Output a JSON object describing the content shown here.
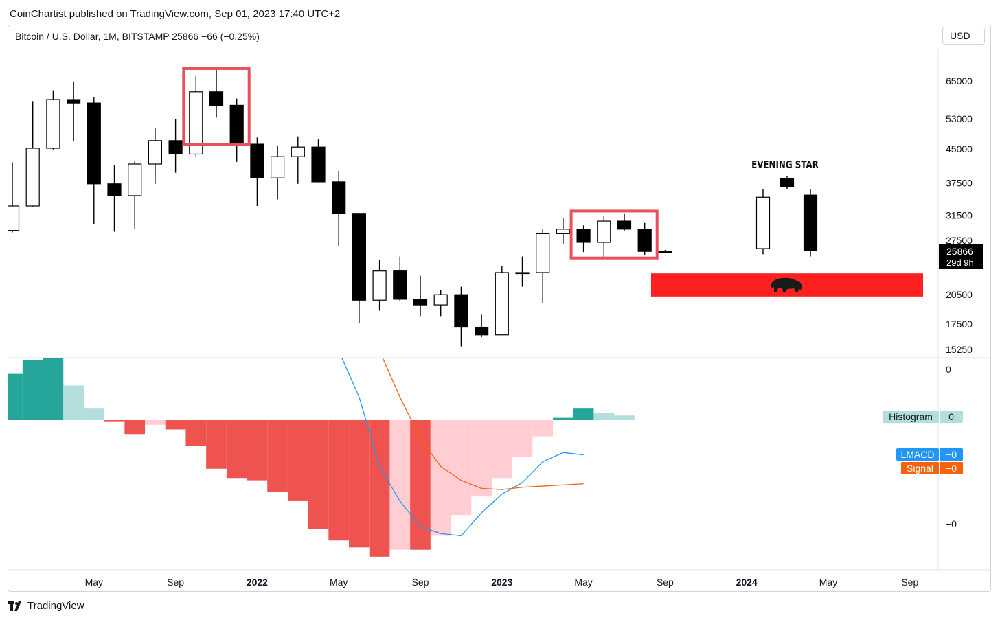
{
  "header": {
    "publisher_line": "CoinChartist published on TradingView.com, Sep 01, 2023 17:40 UTC+2",
    "symbol_line": "Bitcoin / U.S. Dollar, 1M, BITSTAMP  25866  −66 (−0.25%)",
    "currency": "USD"
  },
  "footer": {
    "brand": "TradingView"
  },
  "colors": {
    "bull_body": "#ffffff",
    "bear_body": "#000000",
    "highlight_box": "#e8505b",
    "bear_zone": "#fd2020",
    "macd_line": "#2196f3",
    "signal_line": "#f7630c",
    "hist_dark_green": "#26a69a",
    "hist_light_green": "#b2dfdb",
    "hist_dark_red": "#ef5350",
    "hist_light_red": "#ffcdd2"
  },
  "chart_data": {
    "type": "candlestick",
    "timeframe": "1M",
    "price_axis": {
      "scale": "log",
      "ticks": [
        65000,
        53000,
        45000,
        37500,
        31500,
        27500,
        23500,
        20500,
        17500,
        15250
      ],
      "tick_labels": [
        "65000",
        "53000",
        "45000",
        "37500",
        "31500",
        "27500",
        "",
        "20500",
        "17500",
        "15250"
      ]
    },
    "last_price": {
      "value": "25866",
      "countdown": "29d 9h",
      "price": 25866
    },
    "time_axis": {
      "labels": [
        {
          "text": "May",
          "bold": false,
          "month_index": 4
        },
        {
          "text": "Sep",
          "bold": false,
          "month_index": 8
        },
        {
          "text": "2022",
          "bold": true,
          "month_index": 12
        },
        {
          "text": "May",
          "bold": false,
          "month_index": 16
        },
        {
          "text": "Sep",
          "bold": false,
          "month_index": 20
        },
        {
          "text": "2023",
          "bold": true,
          "month_index": 24
        },
        {
          "text": "May",
          "bold": false,
          "month_index": 28
        },
        {
          "text": "Sep",
          "bold": false,
          "month_index": 32
        },
        {
          "text": "2024",
          "bold": true,
          "month_index": 36
        },
        {
          "text": "May",
          "bold": false,
          "month_index": 40
        },
        {
          "text": "Sep",
          "bold": false,
          "month_index": 44
        }
      ]
    },
    "candles": [
      {
        "date": "2021-01",
        "open": 29000,
        "high": 41900,
        "low": 28700,
        "close": 33100
      },
      {
        "date": "2021-02",
        "open": 33100,
        "high": 58300,
        "low": 33000,
        "close": 45200
      },
      {
        "date": "2021-03",
        "open": 45200,
        "high": 61800,
        "low": 44900,
        "close": 58800
      },
      {
        "date": "2021-04",
        "open": 58800,
        "high": 64800,
        "low": 47000,
        "close": 57700
      },
      {
        "date": "2021-05",
        "open": 57700,
        "high": 59500,
        "low": 30000,
        "close": 37300
      },
      {
        "date": "2021-06",
        "open": 37300,
        "high": 41300,
        "low": 28800,
        "close": 35000
      },
      {
        "date": "2021-07",
        "open": 35000,
        "high": 42300,
        "low": 29300,
        "close": 41500
      },
      {
        "date": "2021-08",
        "open": 41500,
        "high": 50500,
        "low": 37300,
        "close": 47100
      },
      {
        "date": "2021-09",
        "open": 47100,
        "high": 52900,
        "low": 39600,
        "close": 43800
      },
      {
        "date": "2021-10",
        "open": 43800,
        "high": 67000,
        "low": 43300,
        "close": 61300
      },
      {
        "date": "2021-11",
        "open": 61300,
        "high": 69000,
        "low": 53300,
        "close": 57000
      },
      {
        "date": "2021-12",
        "open": 57000,
        "high": 59100,
        "low": 42000,
        "close": 46200
      },
      {
        "date": "2022-01",
        "open": 46200,
        "high": 47900,
        "low": 33100,
        "close": 38500
      },
      {
        "date": "2022-02",
        "open": 38500,
        "high": 45800,
        "low": 34300,
        "close": 43200
      },
      {
        "date": "2022-03",
        "open": 43200,
        "high": 48200,
        "low": 37300,
        "close": 45500
      },
      {
        "date": "2022-04",
        "open": 45500,
        "high": 47400,
        "low": 37600,
        "close": 37700
      },
      {
        "date": "2022-05",
        "open": 37700,
        "high": 40000,
        "low": 26700,
        "close": 31800
      },
      {
        "date": "2022-06",
        "open": 31800,
        "high": 31900,
        "low": 17600,
        "close": 19900
      },
      {
        "date": "2022-07",
        "open": 19900,
        "high": 24700,
        "low": 18800,
        "close": 23300
      },
      {
        "date": "2022-08",
        "open": 23300,
        "high": 25200,
        "low": 19800,
        "close": 20000
      },
      {
        "date": "2022-09",
        "open": 20000,
        "high": 22700,
        "low": 18200,
        "close": 19400
      },
      {
        "date": "2022-10",
        "open": 19400,
        "high": 21000,
        "low": 18200,
        "close": 20500
      },
      {
        "date": "2022-11",
        "open": 20500,
        "high": 21400,
        "low": 15500,
        "close": 17200
      },
      {
        "date": "2022-12",
        "open": 17200,
        "high": 18400,
        "low": 16300,
        "close": 16500
      },
      {
        "date": "2023-01",
        "open": 16500,
        "high": 23900,
        "low": 16500,
        "close": 23100
      },
      {
        "date": "2023-02",
        "open": 23100,
        "high": 25200,
        "low": 21400,
        "close": 23100
      },
      {
        "date": "2023-03",
        "open": 23100,
        "high": 29200,
        "low": 19600,
        "close": 28500
      },
      {
        "date": "2023-04",
        "open": 28500,
        "high": 31000,
        "low": 27000,
        "close": 29200
      },
      {
        "date": "2023-05",
        "open": 29200,
        "high": 29800,
        "low": 25800,
        "close": 27200
      },
      {
        "date": "2023-06",
        "open": 27200,
        "high": 31400,
        "low": 24800,
        "close": 30500
      },
      {
        "date": "2023-07",
        "open": 30500,
        "high": 31800,
        "low": 28900,
        "close": 29200
      },
      {
        "date": "2023-08",
        "open": 29200,
        "high": 30200,
        "low": 25400,
        "close": 25900
      },
      {
        "date": "2023-09",
        "open": 25900,
        "high": 26100,
        "low": 25700,
        "close": 25866
      }
    ],
    "annotations": {
      "highlight_boxes": [
        {
          "from": "2021-10",
          "to": "2021-12",
          "top": 69500,
          "bottom": 46200
        },
        {
          "from": "2023-05",
          "to": "2023-08",
          "top": 32200,
          "bottom": 25000
        }
      ],
      "evening_star": {
        "label": "EVENING STAR",
        "candles": [
          {
            "open": 26300,
            "high": 36200,
            "low": 25500,
            "close": 34700
          },
          {
            "open": 38400,
            "high": 38900,
            "low": 36200,
            "close": 36800
          },
          {
            "open": 35100,
            "high": 36200,
            "low": 25200,
            "close": 26000
          }
        ]
      },
      "bear_zone": {
        "top": 23000,
        "bottom": 20300,
        "icon": "bear-icon"
      }
    },
    "indicator": {
      "name": "MACD",
      "tick_labels": [
        "0",
        "−0"
      ],
      "legend": [
        {
          "label": "Histogram",
          "value": "0"
        },
        {
          "label": "LMACD",
          "value": "−0"
        },
        {
          "label": "Signal",
          "value": "−0"
        }
      ],
      "histogram": [
        2000,
        2600,
        2700,
        1500,
        500,
        -50,
        -600,
        -200,
        -400,
        -1100,
        -2100,
        -2500,
        -2600,
        -3100,
        -3500,
        -4700,
        -5200,
        -5500,
        -5900,
        -5600,
        -5600,
        -5000,
        -4100,
        -3300,
        -2500,
        -1600,
        -700,
        100,
        500,
        300,
        200
      ],
      "macd": [
        null,
        null,
        null,
        null,
        null,
        null,
        null,
        null,
        null,
        null,
        null,
        null,
        null,
        null,
        null,
        null,
        3000,
        1000,
        -2000,
        -3500,
        -4600,
        -4900,
        -5000,
        -4000,
        -3200,
        -2700,
        -1800,
        -1400,
        -1500
      ],
      "signal": [
        null,
        null,
        null,
        null,
        null,
        null,
        null,
        null,
        null,
        null,
        null,
        null,
        null,
        null,
        null,
        null,
        null,
        null,
        3000,
        1000,
        -800,
        -2000,
        -2600,
        -2950,
        -3000,
        -2900,
        -2850,
        -2800,
        -2750
      ]
    }
  }
}
